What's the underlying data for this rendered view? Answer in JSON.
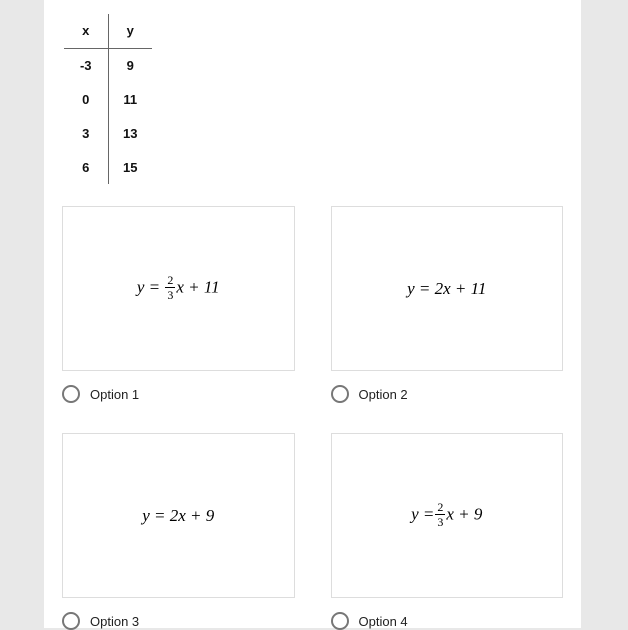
{
  "table": {
    "headers": [
      "x",
      "y"
    ],
    "rows": [
      [
        "-3",
        "9"
      ],
      [
        "0",
        "11"
      ],
      [
        "3",
        "13"
      ],
      [
        "6",
        "15"
      ]
    ]
  },
  "options": [
    {
      "label": "Option 1",
      "eq_prefix": "y = ",
      "has_fraction": true,
      "frac_num": "2",
      "frac_den": "3",
      "eq_after_frac": "x + 11",
      "eq_plain": ""
    },
    {
      "label": "Option 2",
      "eq_prefix": "y = 2x + 11",
      "has_fraction": false,
      "frac_num": "",
      "frac_den": "",
      "eq_after_frac": "",
      "eq_plain": ""
    },
    {
      "label": "Option 3",
      "eq_prefix": "y = 2x + 9",
      "has_fraction": false,
      "frac_num": "",
      "frac_den": "",
      "eq_after_frac": "",
      "eq_plain": ""
    },
    {
      "label": "Option 4",
      "eq_prefix": "y =",
      "has_fraction": true,
      "frac_num": "2",
      "frac_den": "3",
      "eq_after_frac": "x + 9",
      "eq_plain": ""
    }
  ],
  "styles": {
    "card_bg": "#ffffff",
    "page_bg": "#e8e8e8",
    "border_color": "#dddddd",
    "table_border": "#666666",
    "radio_border": "#777777",
    "text_color": "#222222",
    "title_fontsize": 13,
    "eq_fontsize": 17
  }
}
